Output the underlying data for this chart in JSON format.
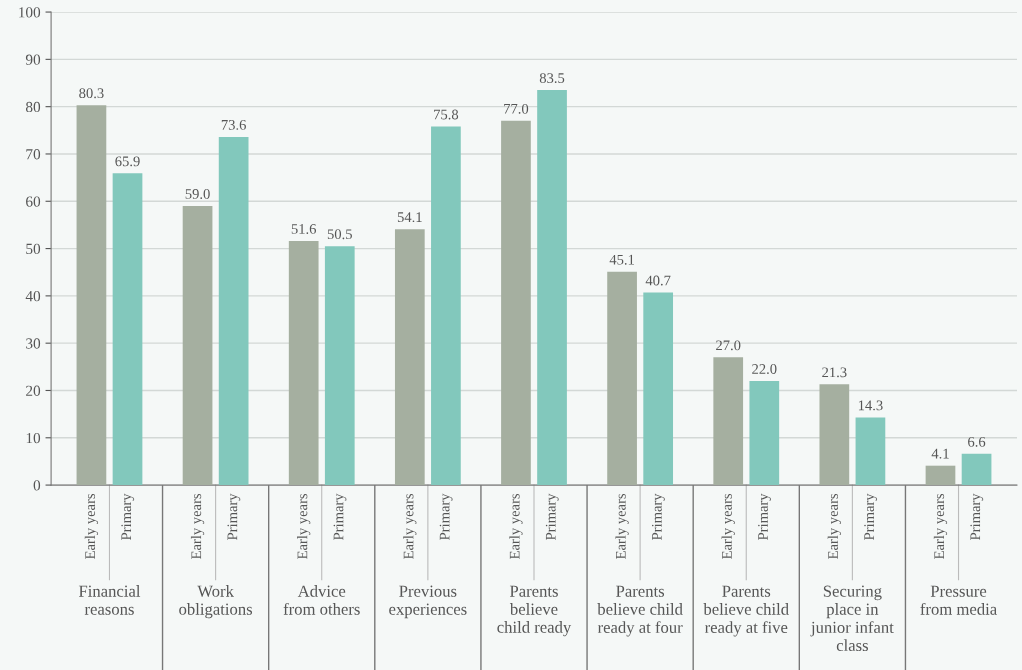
{
  "chart_data": {
    "type": "bar",
    "categories": [
      "Financial\nreasons",
      "Work\nobligations",
      "Advice\nfrom others",
      "Previous\nexperiences",
      "Parents\nbelieve\nchild ready",
      "Parents\nbelieve child\nready at four",
      "Parents\nbelieve child\nready at five",
      "Securing\nplace in\njunior infant\nclass",
      "Pressure\nfrom media"
    ],
    "series": [
      {
        "name": "Early years",
        "color": "#a5afa0",
        "values": [
          80.3,
          59.0,
          51.6,
          54.1,
          77.0,
          45.1,
          27.0,
          21.3,
          4.1
        ],
        "value_labels": [
          "80.3",
          "59.0",
          "51.6",
          "54.1",
          "77.0",
          "45.1",
          "27.0",
          "21.3",
          "4.1"
        ]
      },
      {
        "name": "Primary",
        "color": "#82c8bc",
        "values": [
          65.9,
          73.6,
          50.5,
          75.8,
          83.5,
          40.7,
          22.0,
          14.3,
          6.6
        ],
        "value_labels": [
          "65.9",
          "73.6",
          "50.5",
          "75.8",
          "83.5",
          "40.7",
          "22.0",
          "14.3",
          "6.6"
        ]
      }
    ],
    "ylim": [
      0,
      100
    ],
    "yticks": [
      0,
      10,
      20,
      30,
      40,
      50,
      60,
      70,
      80,
      90,
      100
    ],
    "grid": "y",
    "legend": false
  }
}
